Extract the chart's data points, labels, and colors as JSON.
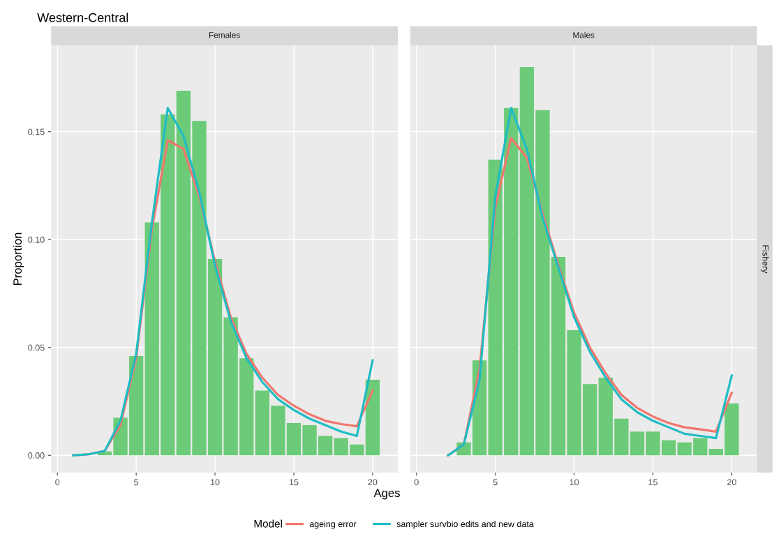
{
  "chart_data": [
    {
      "type": "bar",
      "title": "Females",
      "annotations": [
        "Western-Central"
      ],
      "xlabel": "Ages",
      "ylabel": "Proportion",
      "legend_title": "Model",
      "x": [
        1,
        2,
        3,
        4,
        5,
        6,
        7,
        8,
        9,
        10,
        11,
        12,
        13,
        14,
        15,
        16,
        17,
        18,
        19,
        20
      ],
      "series": [
        {
          "color": "#6ccb78",
          "values": [
            null,
            null,
            0.0018,
            0.0174,
            0.046,
            0.108,
            0.158,
            0.169,
            0.155,
            0.091,
            0.064,
            0.045,
            0.03,
            0.023,
            0.015,
            0.014,
            0.009,
            0.008,
            0.005,
            0.035
          ]
        },
        {
          "type": "line",
          "name": "ageing error",
          "color": "#f0766e",
          "values": [
            0,
            0.0005,
            0.002,
            0.014,
            0.045,
            0.105,
            0.146,
            0.142,
            0.12,
            0.09,
            0.064,
            0.047,
            0.036,
            0.028,
            0.023,
            0.019,
            0.016,
            0.0145,
            0.0135,
            0.03
          ]
        },
        {
          "type": "line",
          "name": "sampler survbio edits and new data",
          "color": "#1fbcc4",
          "values": [
            0,
            0.0005,
            0.002,
            0.016,
            0.047,
            0.108,
            0.161,
            0.148,
            0.122,
            0.088,
            0.062,
            0.045,
            0.034,
            0.026,
            0.021,
            0.017,
            0.014,
            0.011,
            0.009,
            0.044
          ]
        }
      ],
      "xlim": [
        -0.4,
        21.6
      ],
      "ylim": [
        -0.008,
        0.19
      ],
      "xticks": [
        0,
        5,
        10,
        15,
        20
      ],
      "yticks": [
        {
          "value": 0,
          "label": "0.00"
        },
        {
          "value": 0.05,
          "label": "0.05"
        },
        {
          "value": 0.1,
          "label": "0.10"
        },
        {
          "value": 0.15,
          "label": "0.15"
        }
      ],
      "grid": true,
      "legend": "bottom"
    },
    {
      "type": "bar",
      "title": "Males",
      "annotations": [
        "Fishery"
      ],
      "x": [
        2,
        3,
        4,
        5,
        6,
        7,
        8,
        9,
        10,
        11,
        12,
        13,
        14,
        15,
        16,
        17,
        18,
        19,
        20
      ],
      "series": [
        {
          "color": "#6ccb78",
          "values": [
            null,
            0.006,
            0.044,
            0.137,
            0.161,
            0.18,
            0.16,
            0.092,
            0.058,
            0.033,
            0.036,
            0.017,
            0.011,
            0.011,
            0.007,
            0.006,
            0.008,
            0.003,
            0.024
          ]
        },
        {
          "type": "line",
          "color": "#f0766e",
          "values": [
            0,
            0.005,
            0.04,
            0.115,
            0.147,
            0.138,
            0.112,
            0.088,
            0.066,
            0.05,
            0.038,
            0.028,
            0.022,
            0.018,
            0.015,
            0.013,
            0.012,
            0.011,
            0.029
          ]
        },
        {
          "type": "line",
          "color": "#1fbcc4",
          "values": [
            0,
            0.005,
            0.035,
            0.12,
            0.161,
            0.142,
            0.11,
            0.087,
            0.064,
            0.048,
            0.036,
            0.026,
            0.02,
            0.016,
            0.013,
            0.01,
            0.009,
            0.008,
            0.037
          ]
        }
      ],
      "xlim": [
        -0.4,
        21.6
      ],
      "ylim": [
        -0.008,
        0.19
      ],
      "xticks": [
        0,
        5,
        10,
        15,
        20
      ],
      "grid": true,
      "tick_labels": "x"
    }
  ]
}
